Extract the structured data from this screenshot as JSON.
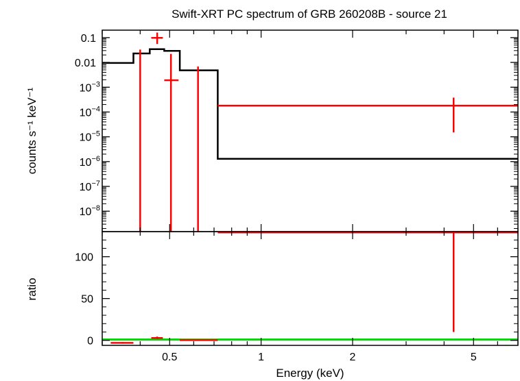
{
  "chart_data": [
    {
      "type": "line",
      "panel": "spectrum",
      "title": "Swift-XRT PC spectrum of GRB 260208B - source 21",
      "xlabel": "Energy (keV)",
      "ylabel": "counts s⁻¹ keV⁻¹",
      "x_scale": "log",
      "y_scale": "log",
      "xlim": [
        0.3,
        7.0
      ],
      "ylim": [
        1.5e-09,
        0.2
      ],
      "y_ticks": [
        {
          "value": 0.1,
          "label": "0.1"
        },
        {
          "value": 0.01,
          "label": "0.01"
        },
        {
          "value": 0.001,
          "label": "10",
          "exp": "−3"
        },
        {
          "value": 0.0001,
          "label": "10",
          "exp": "−4"
        },
        {
          "value": 1e-05,
          "label": "10",
          "exp": "−5"
        },
        {
          "value": 1e-06,
          "label": "10",
          "exp": "−6"
        },
        {
          "value": 1e-07,
          "label": "10",
          "exp": "−7"
        },
        {
          "value": 1e-08,
          "label": "10",
          "exp": "−8"
        }
      ],
      "data_points": [
        {
          "x": 0.455,
          "x_lo": 0.435,
          "x_hi": 0.475,
          "y": 0.098,
          "y_lo": 0.055,
          "y_hi": 0.16
        },
        {
          "x": 0.505,
          "x_lo": 0.48,
          "x_hi": 0.535,
          "y": 0.0019,
          "y_lo": 1.5e-09,
          "y_hi": 0.022
        },
        {
          "x": 4.3,
          "x_lo": 0.72,
          "x_hi": 7.0,
          "y": 0.00018,
          "y_lo": 1.5e-05,
          "y_hi": 0.00038
        }
      ],
      "upper_limits": [
        {
          "x": 0.4,
          "y_hi": 0.033
        },
        {
          "x": 0.62,
          "y_hi": 0.0068
        }
      ],
      "model_steps": [
        {
          "x0": 0.3,
          "x1": 0.38,
          "y": 0.0095
        },
        {
          "x0": 0.38,
          "x1": 0.43,
          "y": 0.023
        },
        {
          "x0": 0.43,
          "x1": 0.48,
          "y": 0.034
        },
        {
          "x0": 0.48,
          "x1": 0.54,
          "y": 0.029
        },
        {
          "x0": 0.54,
          "x1": 0.72,
          "y": 0.0048
        },
        {
          "x0": 0.72,
          "x1": 7.0,
          "y": 1.3e-06
        }
      ],
      "colors": {
        "data": "#ff0000",
        "model": "#000000"
      }
    },
    {
      "type": "line",
      "panel": "ratio",
      "xlabel": "Energy (keV)",
      "ylabel": "ratio",
      "x_scale": "log",
      "y_scale": "linear",
      "xlim": [
        0.3,
        7.0
      ],
      "ylim": [
        -6,
        130
      ],
      "x_ticks": [
        {
          "value": 0.5,
          "label": "0.5"
        },
        {
          "value": 1,
          "label": "1"
        },
        {
          "value": 2,
          "label": "2"
        },
        {
          "value": 5,
          "label": "5"
        }
      ],
      "y_ticks": [
        {
          "value": 0,
          "label": "0"
        },
        {
          "value": 50,
          "label": "50"
        },
        {
          "value": 100,
          "label": "100"
        }
      ],
      "data_points": [
        {
          "x": 0.35,
          "x_lo": 0.32,
          "x_hi": 0.38,
          "y": -3,
          "y_lo": -4,
          "y_hi": -2
        },
        {
          "x": 0.455,
          "x_lo": 0.435,
          "x_hi": 0.475,
          "y": 2.8,
          "y_lo": 1.5,
          "y_hi": 4.5
        },
        {
          "x": 0.6,
          "x_lo": 0.54,
          "x_hi": 0.72,
          "y": 0.2,
          "y_lo": 0,
          "y_hi": 0.5
        },
        {
          "x": 4.3,
          "x_lo": 0.72,
          "x_hi": 7.0,
          "y": 129,
          "y_lo": 10,
          "y_hi": 130
        }
      ],
      "reference_line": {
        "y": 1,
        "color": "#00dd00"
      },
      "colors": {
        "data": "#ff0000"
      }
    }
  ]
}
